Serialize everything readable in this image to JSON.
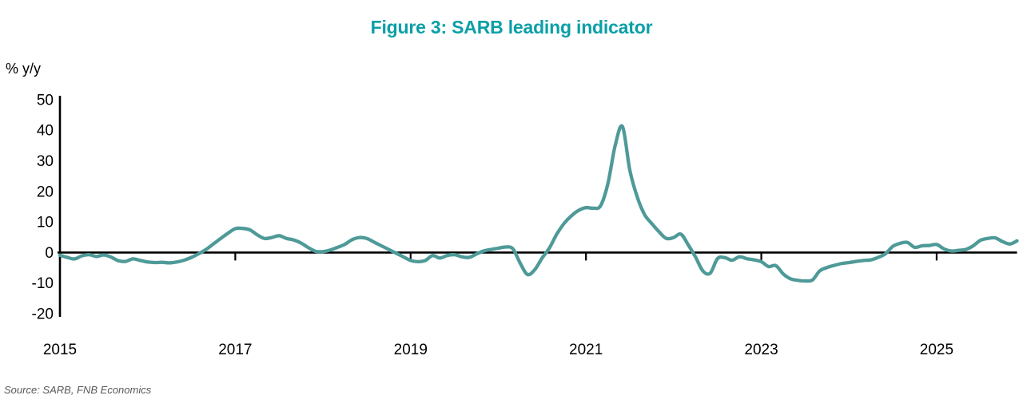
{
  "title": {
    "text": "Figure 3: SARB leading indicator",
    "color": "#0b9fa7"
  },
  "y_axis": {
    "label": "% y/y",
    "ticks": [
      50,
      40,
      30,
      20,
      10,
      0,
      -10,
      -20
    ]
  },
  "x_axis": {
    "tick_years": [
      "2015",
      "2017",
      "2019",
      "2021",
      "2023",
      "2025"
    ]
  },
  "source": "Source: SARB, FNB Economics",
  "chart_data": {
    "type": "line",
    "title": "Figure 3: SARB leading indicator",
    "xlabel": "",
    "ylabel": "% y/y",
    "ylim": [
      -20,
      50
    ],
    "x_range": [
      "2015-01",
      "2025-12"
    ],
    "frequency": "monthly",
    "grid": false,
    "legend": "none",
    "line_color": "#4e9a98",
    "axis_color": "#000000",
    "x_tick_labels": [
      "2015",
      "2017",
      "2019",
      "2021",
      "2023",
      "2025"
    ],
    "y_tick_values": [
      50,
      40,
      30,
      20,
      10,
      0,
      -10,
      -20
    ],
    "series": [
      {
        "name": "SARB leading indicator, % y/y",
        "values": [
          -0.9,
          -1.6,
          -2.1,
          -1.1,
          -0.7,
          -1.3,
          -0.8,
          -1.5,
          -2.7,
          -2.9,
          -2.1,
          -2.6,
          -3.1,
          -3.3,
          -3.2,
          -3.4,
          -3.1,
          -2.5,
          -1.6,
          -0.4,
          1.0,
          2.8,
          4.6,
          6.3,
          7.8,
          7.9,
          7.4,
          5.8,
          4.6,
          4.9,
          5.5,
          4.6,
          4.1,
          3.1,
          1.6,
          0.4,
          0.3,
          0.8,
          1.7,
          2.7,
          4.2,
          4.9,
          4.6,
          3.4,
          2.2,
          1.0,
          -0.2,
          -1.4,
          -2.6,
          -3.0,
          -2.6,
          -1.0,
          -1.8,
          -1.0,
          -0.7,
          -1.4,
          -1.6,
          -0.5,
          0.5,
          1.0,
          1.4,
          1.8,
          1.2,
          -3.5,
          -7.2,
          -5.6,
          -1.8,
          1.5,
          6.0,
          9.5,
          12.0,
          13.8,
          14.7,
          14.5,
          15.3,
          22.5,
          35.0,
          41.2,
          27.0,
          18.3,
          12.5,
          9.5,
          6.8,
          4.6,
          4.9,
          6.0,
          2.5,
          -1.5,
          -6.0,
          -6.8,
          -2.0,
          -1.7,
          -2.5,
          -1.4,
          -2.0,
          -2.4,
          -3.0,
          -4.6,
          -4.3,
          -7.0,
          -8.6,
          -9.1,
          -9.3,
          -9.0,
          -6.0,
          -4.9,
          -4.2,
          -3.6,
          -3.3,
          -2.9,
          -2.6,
          -2.4,
          -1.6,
          -0.4,
          2.0,
          3.0,
          3.3,
          1.7,
          2.2,
          2.3,
          2.6,
          1.2,
          0.5,
          0.7,
          1.0,
          2.2,
          4.0,
          4.6,
          4.8,
          3.6,
          2.8,
          3.8
        ]
      }
    ]
  }
}
